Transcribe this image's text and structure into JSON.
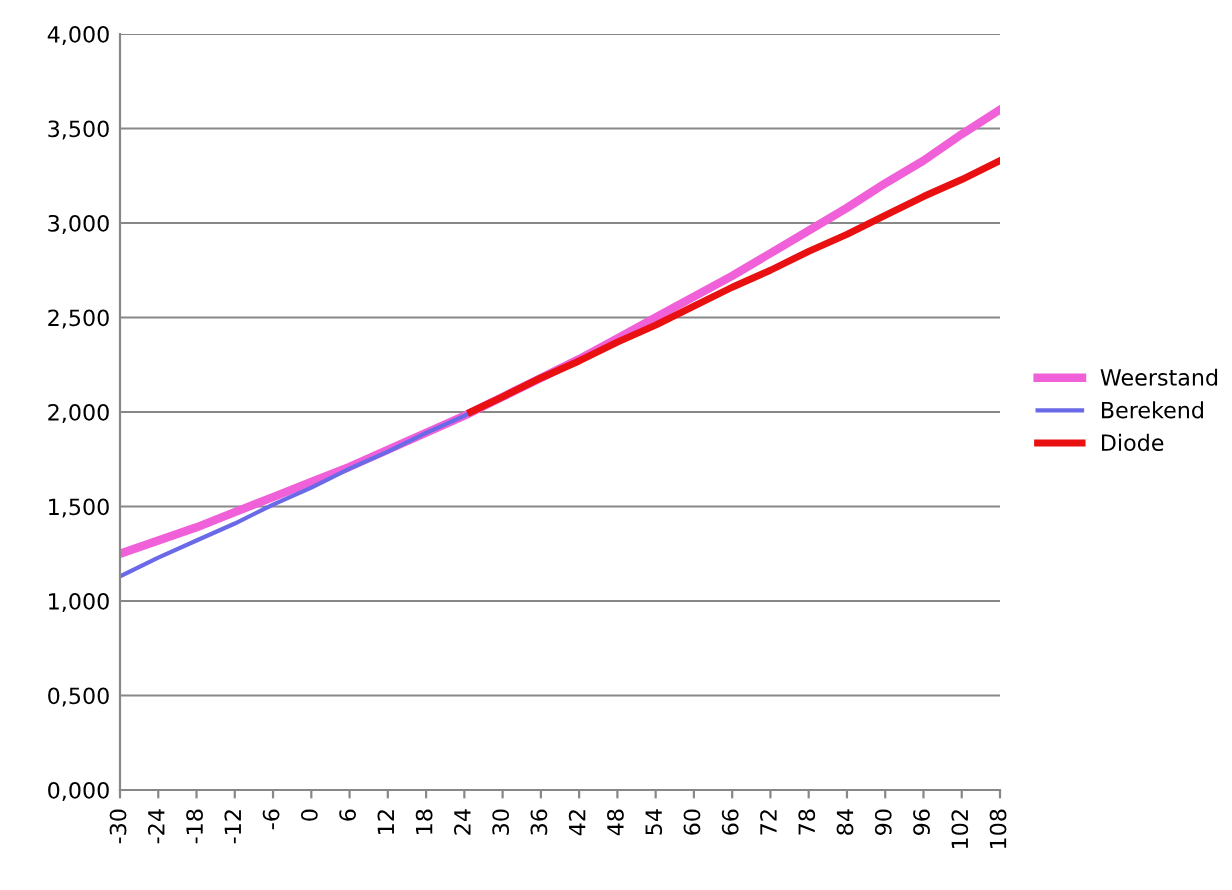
{
  "chart_data": {
    "type": "line",
    "xlim": [
      -30,
      108
    ],
    "xticks": [
      -30,
      -24,
      -18,
      -12,
      -6,
      0,
      6,
      12,
      18,
      24,
      30,
      36,
      42,
      48,
      54,
      60,
      66,
      72,
      78,
      84,
      90,
      96,
      102,
      108
    ],
    "ylim": [
      0,
      4
    ],
    "yticks": [
      {
        "value": 0,
        "label": "0,000"
      },
      {
        "value": 0.5,
        "label": "0,500"
      },
      {
        "value": 1,
        "label": "1,000"
      },
      {
        "value": 1.5,
        "label": "1,500"
      },
      {
        "value": 2,
        "label": "2,000"
      },
      {
        "value": 2.5,
        "label": "2,500"
      },
      {
        "value": 3,
        "label": "3,000"
      },
      {
        "value": 3.5,
        "label": "3,500"
      },
      {
        "value": 4,
        "label": "4,000"
      }
    ],
    "grid": "y",
    "legend": "right",
    "marker": "none",
    "line_style": "solid",
    "series": [
      {
        "name": "Weerstand",
        "color": "#f060d8",
        "x": [
          -30,
          -24,
          -18,
          -12,
          -6,
          0,
          6,
          12,
          18,
          24,
          30,
          36,
          42,
          48,
          54,
          60,
          66,
          72,
          78,
          84,
          90,
          96,
          102,
          108
        ],
        "values": [
          1.25,
          1.32,
          1.39,
          1.47,
          1.55,
          1.63,
          1.71,
          1.8,
          1.89,
          1.98,
          2.08,
          2.18,
          2.28,
          2.39,
          2.5,
          2.61,
          2.72,
          2.84,
          2.96,
          3.08,
          3.21,
          3.33,
          3.47,
          3.6
        ]
      },
      {
        "name": "Berekend",
        "color": "#6a6ae8",
        "x": [
          -30,
          -24,
          -18,
          -12,
          -6,
          0,
          6,
          12,
          18,
          24,
          25
        ],
        "values": [
          1.13,
          1.23,
          1.32,
          1.41,
          1.51,
          1.6,
          1.7,
          1.79,
          1.89,
          1.98,
          2.0
        ]
      },
      {
        "name": "Diode",
        "color": "#e81010",
        "x": [
          25,
          30,
          36,
          42,
          48,
          54,
          60,
          66,
          72,
          78,
          84,
          90,
          96,
          102,
          108
        ],
        "values": [
          2.0,
          2.08,
          2.18,
          2.27,
          2.37,
          2.46,
          2.56,
          2.66,
          2.75,
          2.85,
          2.94,
          3.04,
          3.14,
          3.23,
          3.33
        ]
      }
    ]
  }
}
